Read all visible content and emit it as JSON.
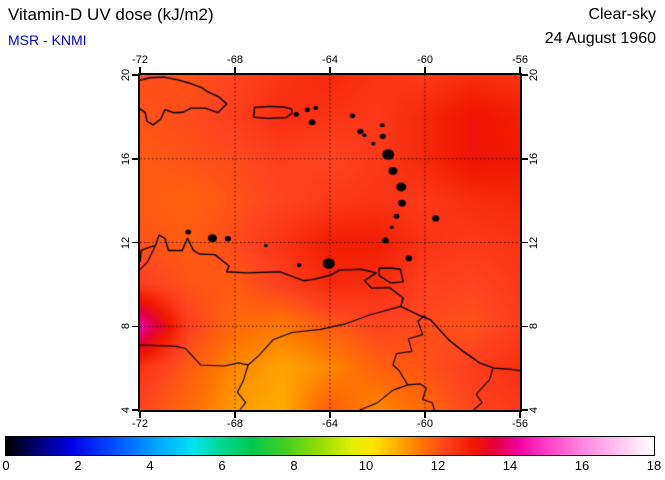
{
  "header": {
    "title": "Vitamin-D UV dose (kJ/m2)",
    "product": "MSR - KNMI",
    "condition": "Clear-sky",
    "date": "24 August 1960",
    "product_color": "#0000cc"
  },
  "chart_data": {
    "type": "heatmap",
    "title": "Vitamin-D UV dose (kJ/m2)",
    "units": "kJ/m2",
    "lon_range": [
      -72,
      -56
    ],
    "lat_range": [
      4,
      20
    ],
    "lon_ticks": [
      -72,
      -68,
      -64,
      -60,
      -56
    ],
    "lat_ticks": [
      20,
      16,
      12,
      8,
      4
    ],
    "grid_on": true,
    "grid": {
      "lons": [
        -72,
        -70,
        -68,
        -66,
        -64,
        -62,
        -60,
        -58,
        -56
      ],
      "lats": [
        20,
        18,
        16,
        14,
        12,
        10,
        8,
        6,
        4
      ],
      "values": [
        [
          12.1,
          12.0,
          12.2,
          12.5,
          12.7,
          12.5,
          12.4,
          12.6,
          12.5
        ],
        [
          12.0,
          12.1,
          12.3,
          12.6,
          12.5,
          12.4,
          12.7,
          13.1,
          12.9
        ],
        [
          11.9,
          12.0,
          12.1,
          12.3,
          12.2,
          12.4,
          12.7,
          13.1,
          13.0
        ],
        [
          11.9,
          11.8,
          12.0,
          12.2,
          12.4,
          12.5,
          12.4,
          12.6,
          12.7
        ],
        [
          12.0,
          11.9,
          12.1,
          12.5,
          12.9,
          12.9,
          12.5,
          12.4,
          12.5
        ],
        [
          12.3,
          12.0,
          11.9,
          12.3,
          12.7,
          12.6,
          12.3,
          12.2,
          12.4
        ],
        [
          14.3,
          12.3,
          11.7,
          11.5,
          11.9,
          12.2,
          12.1,
          12.0,
          12.3
        ],
        [
          12.5,
          11.9,
          11.3,
          11.0,
          11.3,
          11.8,
          12.0,
          12.3,
          12.6
        ],
        [
          12.2,
          11.7,
          11.1,
          10.9,
          11.9,
          11.3,
          11.7,
          12.2,
          12.4
        ]
      ]
    },
    "colorbar": {
      "min": 0,
      "max": 18,
      "tick_values": [
        0,
        2,
        4,
        6,
        8,
        10,
        12,
        14,
        16,
        18
      ],
      "stops": [
        [
          0.0,
          "#000000"
        ],
        [
          0.8,
          "#00006e"
        ],
        [
          1.8,
          "#0000e6"
        ],
        [
          3.0,
          "#0050ff"
        ],
        [
          4.2,
          "#00a8ff"
        ],
        [
          5.2,
          "#00e4f0"
        ],
        [
          6.0,
          "#00d890"
        ],
        [
          6.8,
          "#00c850"
        ],
        [
          7.8,
          "#48d020"
        ],
        [
          8.8,
          "#9ce000"
        ],
        [
          9.6,
          "#e0f000"
        ],
        [
          10.2,
          "#ffe400"
        ],
        [
          10.8,
          "#ffb400"
        ],
        [
          11.5,
          "#ff7800"
        ],
        [
          12.2,
          "#ff4420"
        ],
        [
          13.0,
          "#f01800"
        ],
        [
          13.6,
          "#e4003c"
        ],
        [
          14.2,
          "#f0009c"
        ],
        [
          15.0,
          "#ff3cc8"
        ],
        [
          16.0,
          "#ff86e0"
        ],
        [
          17.0,
          "#ffc2ee"
        ],
        [
          18.0,
          "#ffffff"
        ]
      ]
    },
    "geo": {
      "outlines": [
        {
          "name": "hispaniola",
          "closed": false,
          "points": [
            [
              -72,
              19.75
            ],
            [
              -71.6,
              19.87
            ],
            [
              -71.0,
              19.9
            ],
            [
              -70.4,
              19.77
            ],
            [
              -69.95,
              19.62
            ],
            [
              -69.4,
              19.4
            ],
            [
              -69.15,
              19.2
            ],
            [
              -68.7,
              18.97
            ],
            [
              -68.35,
              18.62
            ],
            [
              -68.72,
              18.2
            ],
            [
              -69.25,
              18.42
            ],
            [
              -69.85,
              18.42
            ],
            [
              -70.2,
              18.22
            ],
            [
              -70.6,
              18.2
            ],
            [
              -70.95,
              18.35
            ],
            [
              -71.12,
              17.9
            ],
            [
              -71.45,
              17.62
            ],
            [
              -71.7,
              17.78
            ],
            [
              -71.78,
              18.2
            ],
            [
              -72,
              18.38
            ]
          ]
        },
        {
          "name": "puerto-rico",
          "closed": true,
          "points": [
            [
              -67.18,
              18.45
            ],
            [
              -66.55,
              18.5
            ],
            [
              -65.95,
              18.47
            ],
            [
              -65.62,
              18.38
            ],
            [
              -65.6,
              18.18
            ],
            [
              -65.85,
              17.97
            ],
            [
              -66.6,
              17.93
            ],
            [
              -67.2,
              17.98
            ]
          ]
        },
        {
          "name": "trinidad",
          "closed": true,
          "points": [
            [
              -61.93,
              10.77
            ],
            [
              -61.45,
              10.78
            ],
            [
              -61.03,
              10.72
            ],
            [
              -60.92,
              10.12
            ],
            [
              -61.45,
              10.07
            ],
            [
              -61.93,
              10.42
            ]
          ]
        },
        {
          "name": "south-america-coast",
          "closed": false,
          "points": [
            [
              -72,
              11.1
            ],
            [
              -71.95,
              11.62
            ],
            [
              -71.62,
              11.77
            ],
            [
              -71.35,
              11.85
            ],
            [
              -71.2,
              12.35
            ],
            [
              -70.95,
              12.2
            ],
            [
              -70.8,
              11.62
            ],
            [
              -70.22,
              11.62
            ],
            [
              -70.0,
              12.2
            ],
            [
              -69.75,
              11.62
            ],
            [
              -69.5,
              11.45
            ],
            [
              -68.85,
              11.42
            ],
            [
              -68.25,
              10.88
            ],
            [
              -68.35,
              10.6
            ],
            [
              -67.5,
              10.55
            ],
            [
              -66.1,
              10.6
            ],
            [
              -65.1,
              10.17
            ],
            [
              -64.65,
              10.25
            ],
            [
              -63.95,
              10.45
            ],
            [
              -63.6,
              10.68
            ],
            [
              -62.7,
              10.72
            ],
            [
              -62.05,
              10.55
            ],
            [
              -62.55,
              10.18
            ],
            [
              -62.25,
              9.82
            ],
            [
              -61.5,
              9.85
            ],
            [
              -60.92,
              9.35
            ],
            [
              -61.02,
              8.95
            ],
            [
              -60.3,
              8.55
            ],
            [
              -59.78,
              8.32
            ],
            [
              -59.0,
              7.35
            ],
            [
              -58.45,
              6.85
            ],
            [
              -57.7,
              6.25
            ],
            [
              -57.1,
              6.0
            ],
            [
              -56.45,
              5.95
            ],
            [
              -56,
              5.88
            ]
          ]
        }
      ],
      "borders": [
        {
          "name": "colombia-venezuela-north",
          "points": [
            [
              -71.35,
              11.85
            ],
            [
              -71.7,
              11.05
            ],
            [
              -72,
              10.7
            ]
          ]
        },
        {
          "name": "colombia-venezuela-south",
          "points": [
            [
              -72,
              7.1
            ],
            [
              -70.55,
              7.05
            ],
            [
              -70.1,
              6.95
            ],
            [
              -69.45,
              6.15
            ],
            [
              -68.45,
              6.1
            ],
            [
              -67.85,
              6.25
            ],
            [
              -67.45,
              6.15
            ],
            [
              -67.65,
              5.4
            ],
            [
              -67.9,
              4.85
            ],
            [
              -67.55,
              4.35
            ],
            [
              -67.8,
              4.0
            ]
          ]
        },
        {
          "name": "orinoco-river",
          "points": [
            [
              -61.02,
              8.95
            ],
            [
              -62.3,
              8.55
            ],
            [
              -63.4,
              8.1
            ],
            [
              -64.4,
              7.85
            ],
            [
              -65.6,
              7.7
            ],
            [
              -66.4,
              7.35
            ],
            [
              -67.0,
              6.6
            ],
            [
              -67.45,
              6.15
            ]
          ]
        },
        {
          "name": "venezuela-guyana",
          "points": [
            [
              -60.0,
              8.5
            ],
            [
              -60.3,
              8.25
            ],
            [
              -60.1,
              7.6
            ],
            [
              -60.7,
              7.4
            ],
            [
              -60.55,
              6.8
            ],
            [
              -61.2,
              6.7
            ],
            [
              -61.35,
              6.15
            ],
            [
              -61.1,
              5.9
            ],
            [
              -60.73,
              5.2
            ]
          ]
        },
        {
          "name": "venezuela-brazil",
          "points": [
            [
              -60.73,
              5.2
            ],
            [
              -61.35,
              4.95
            ],
            [
              -62.0,
              4.35
            ],
            [
              -62.75,
              4.0
            ]
          ]
        },
        {
          "name": "brazil-guyana",
          "points": [
            [
              -60.73,
              5.2
            ],
            [
              -60.2,
              5.25
            ],
            [
              -59.95,
              5.05
            ],
            [
              -60.1,
              4.5
            ],
            [
              -59.7,
              4.35
            ],
            [
              -59.6,
              4.0
            ]
          ]
        },
        {
          "name": "guyana-suriname",
          "points": [
            [
              -57.15,
              5.95
            ],
            [
              -57.28,
              5.45
            ],
            [
              -57.65,
              5.0
            ],
            [
              -57.85,
              4.75
            ],
            [
              -57.6,
              4.35
            ],
            [
              -57.95,
              4.0
            ]
          ]
        }
      ],
      "islands": [
        {
          "name": "vieques",
          "lon": -65.42,
          "lat": 18.12,
          "size": 0.22
        },
        {
          "name": "st-thomas",
          "lon": -64.95,
          "lat": 18.34,
          "size": 0.22
        },
        {
          "name": "tortola",
          "lon": -64.6,
          "lat": 18.43,
          "size": 0.2
        },
        {
          "name": "st-croix",
          "lon": -64.75,
          "lat": 17.74,
          "size": 0.28
        },
        {
          "name": "st-martin",
          "lon": -63.05,
          "lat": 18.05,
          "size": 0.22
        },
        {
          "name": "barbuda",
          "lon": -61.8,
          "lat": 17.6,
          "size": 0.2
        },
        {
          "name": "antigua",
          "lon": -61.78,
          "lat": 17.07,
          "size": 0.26
        },
        {
          "name": "st-kitts",
          "lon": -62.72,
          "lat": 17.3,
          "size": 0.26
        },
        {
          "name": "nevis",
          "lon": -62.55,
          "lat": 17.12,
          "size": 0.18
        },
        {
          "name": "montserrat",
          "lon": -62.18,
          "lat": 16.72,
          "size": 0.18
        },
        {
          "name": "guadeloupe",
          "lon": -61.55,
          "lat": 16.2,
          "size": 0.5
        },
        {
          "name": "dominica",
          "lon": -61.35,
          "lat": 15.42,
          "size": 0.38
        },
        {
          "name": "martinique",
          "lon": -61.0,
          "lat": 14.65,
          "size": 0.42
        },
        {
          "name": "st-lucia",
          "lon": -60.97,
          "lat": 13.88,
          "size": 0.33
        },
        {
          "name": "st-vincent",
          "lon": -61.2,
          "lat": 13.25,
          "size": 0.24
        },
        {
          "name": "grenadines",
          "lon": -61.4,
          "lat": 12.72,
          "size": 0.16
        },
        {
          "name": "grenada",
          "lon": -61.67,
          "lat": 12.1,
          "size": 0.28
        },
        {
          "name": "barbados",
          "lon": -59.55,
          "lat": 13.15,
          "size": 0.3
        },
        {
          "name": "tobago",
          "lon": -60.68,
          "lat": 11.25,
          "size": 0.28
        },
        {
          "name": "margarita",
          "lon": -64.05,
          "lat": 11.0,
          "size": 0.5
        },
        {
          "name": "curacao",
          "lon": -68.95,
          "lat": 12.2,
          "size": 0.38
        },
        {
          "name": "aruba",
          "lon": -69.97,
          "lat": 12.5,
          "size": 0.24
        },
        {
          "name": "bonaire",
          "lon": -68.3,
          "lat": 12.18,
          "size": 0.26
        },
        {
          "name": "los-roques",
          "lon": -66.7,
          "lat": 11.85,
          "size": 0.16
        },
        {
          "name": "la-tortuga",
          "lon": -65.3,
          "lat": 10.92,
          "size": 0.2
        }
      ]
    }
  }
}
